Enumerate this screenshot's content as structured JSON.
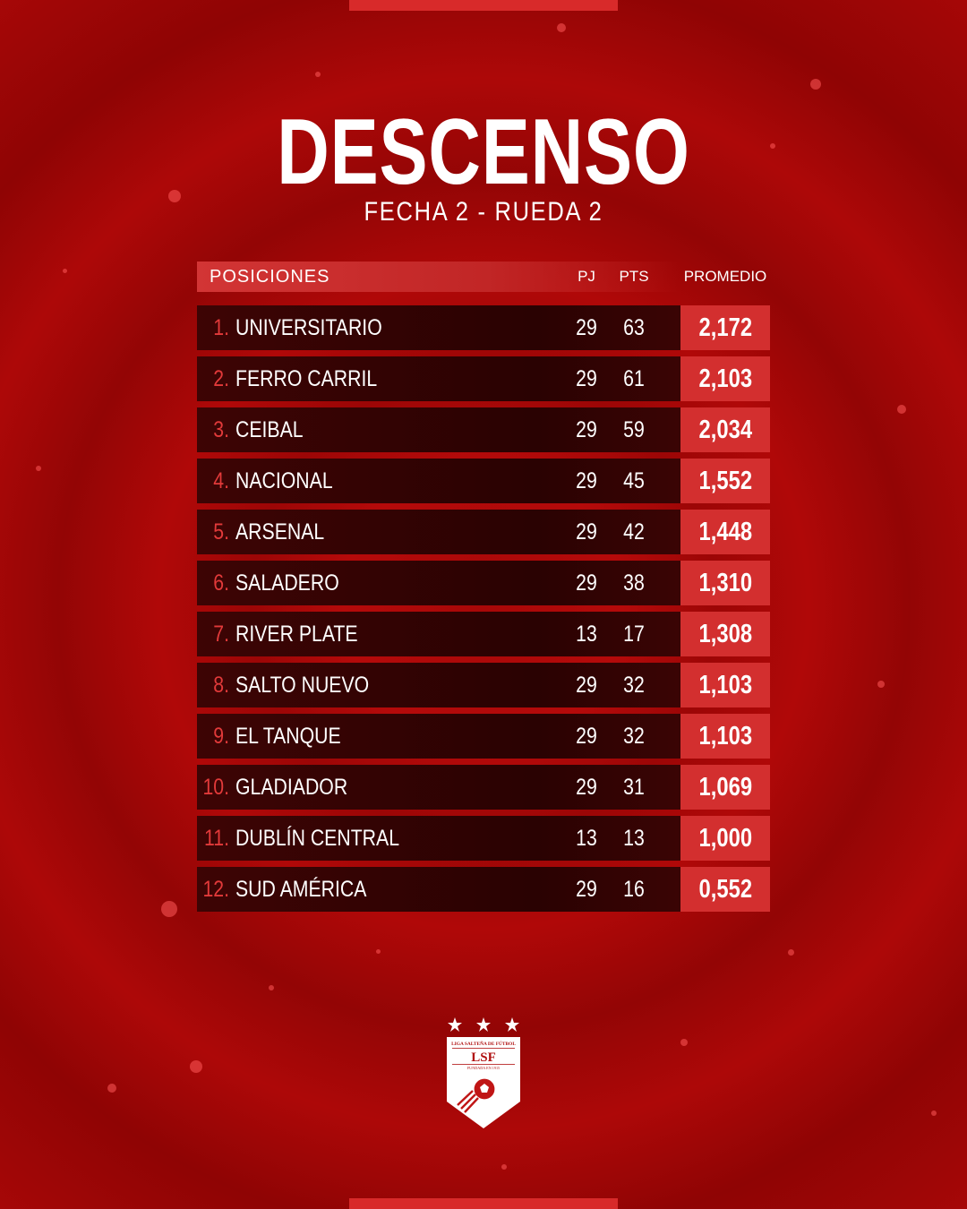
{
  "title": "DESCENSO",
  "subtitle": "FECHA 2 - RUEDA 2",
  "table": {
    "header": {
      "label": "POSICIONES",
      "pj": "PJ",
      "pts": "PTS",
      "promedio": "PROMEDIO"
    },
    "rows": [
      {
        "pos": "1.",
        "team": "UNIVERSITARIO",
        "pj": "29",
        "pts": "63",
        "promedio": "2,172"
      },
      {
        "pos": "2.",
        "team": "FERRO CARRIL",
        "pj": "29",
        "pts": "61",
        "promedio": "2,103"
      },
      {
        "pos": "3.",
        "team": "CEIBAL",
        "pj": "29",
        "pts": "59",
        "promedio": "2,034"
      },
      {
        "pos": "4.",
        "team": "NACIONAL",
        "pj": "29",
        "pts": "45",
        "promedio": "1,552"
      },
      {
        "pos": "5.",
        "team": "ARSENAL",
        "pj": "29",
        "pts": "42",
        "promedio": "1,448"
      },
      {
        "pos": "6.",
        "team": "SALADERO",
        "pj": "29",
        "pts": "38",
        "promedio": "1,310"
      },
      {
        "pos": "7.",
        "team": "RIVER PLATE",
        "pj": "13",
        "pts": "17",
        "promedio": "1,308"
      },
      {
        "pos": "8.",
        "team": "SALTO NUEVO",
        "pj": "29",
        "pts": "32",
        "promedio": "1,103"
      },
      {
        "pos": "9.",
        "team": "EL TANQUE",
        "pj": "29",
        "pts": "32",
        "promedio": "1,103"
      },
      {
        "pos": "10.",
        "team": "GLADIADOR",
        "pj": "29",
        "pts": "31",
        "promedio": "1,069"
      },
      {
        "pos": "11.",
        "team": "DUBLÍN CENTRAL",
        "pj": "13",
        "pts": "13",
        "promedio": "1,000"
      },
      {
        "pos": "12.",
        "team": "SUD AMÉRICA",
        "pj": "29",
        "pts": "16",
        "promedio": "0,552"
      }
    ]
  },
  "logo": {
    "icon": "lsf-shield-logo",
    "org": "LIGA SALTEÑA DE FÚTBOL",
    "abbr": "LSF",
    "founded": "FUNDADA EN 1915"
  },
  "colors": {
    "accent": "#d32f2f",
    "row_bg": "#2e0202",
    "position_number": "#e23a3a",
    "background": "#a80808"
  }
}
